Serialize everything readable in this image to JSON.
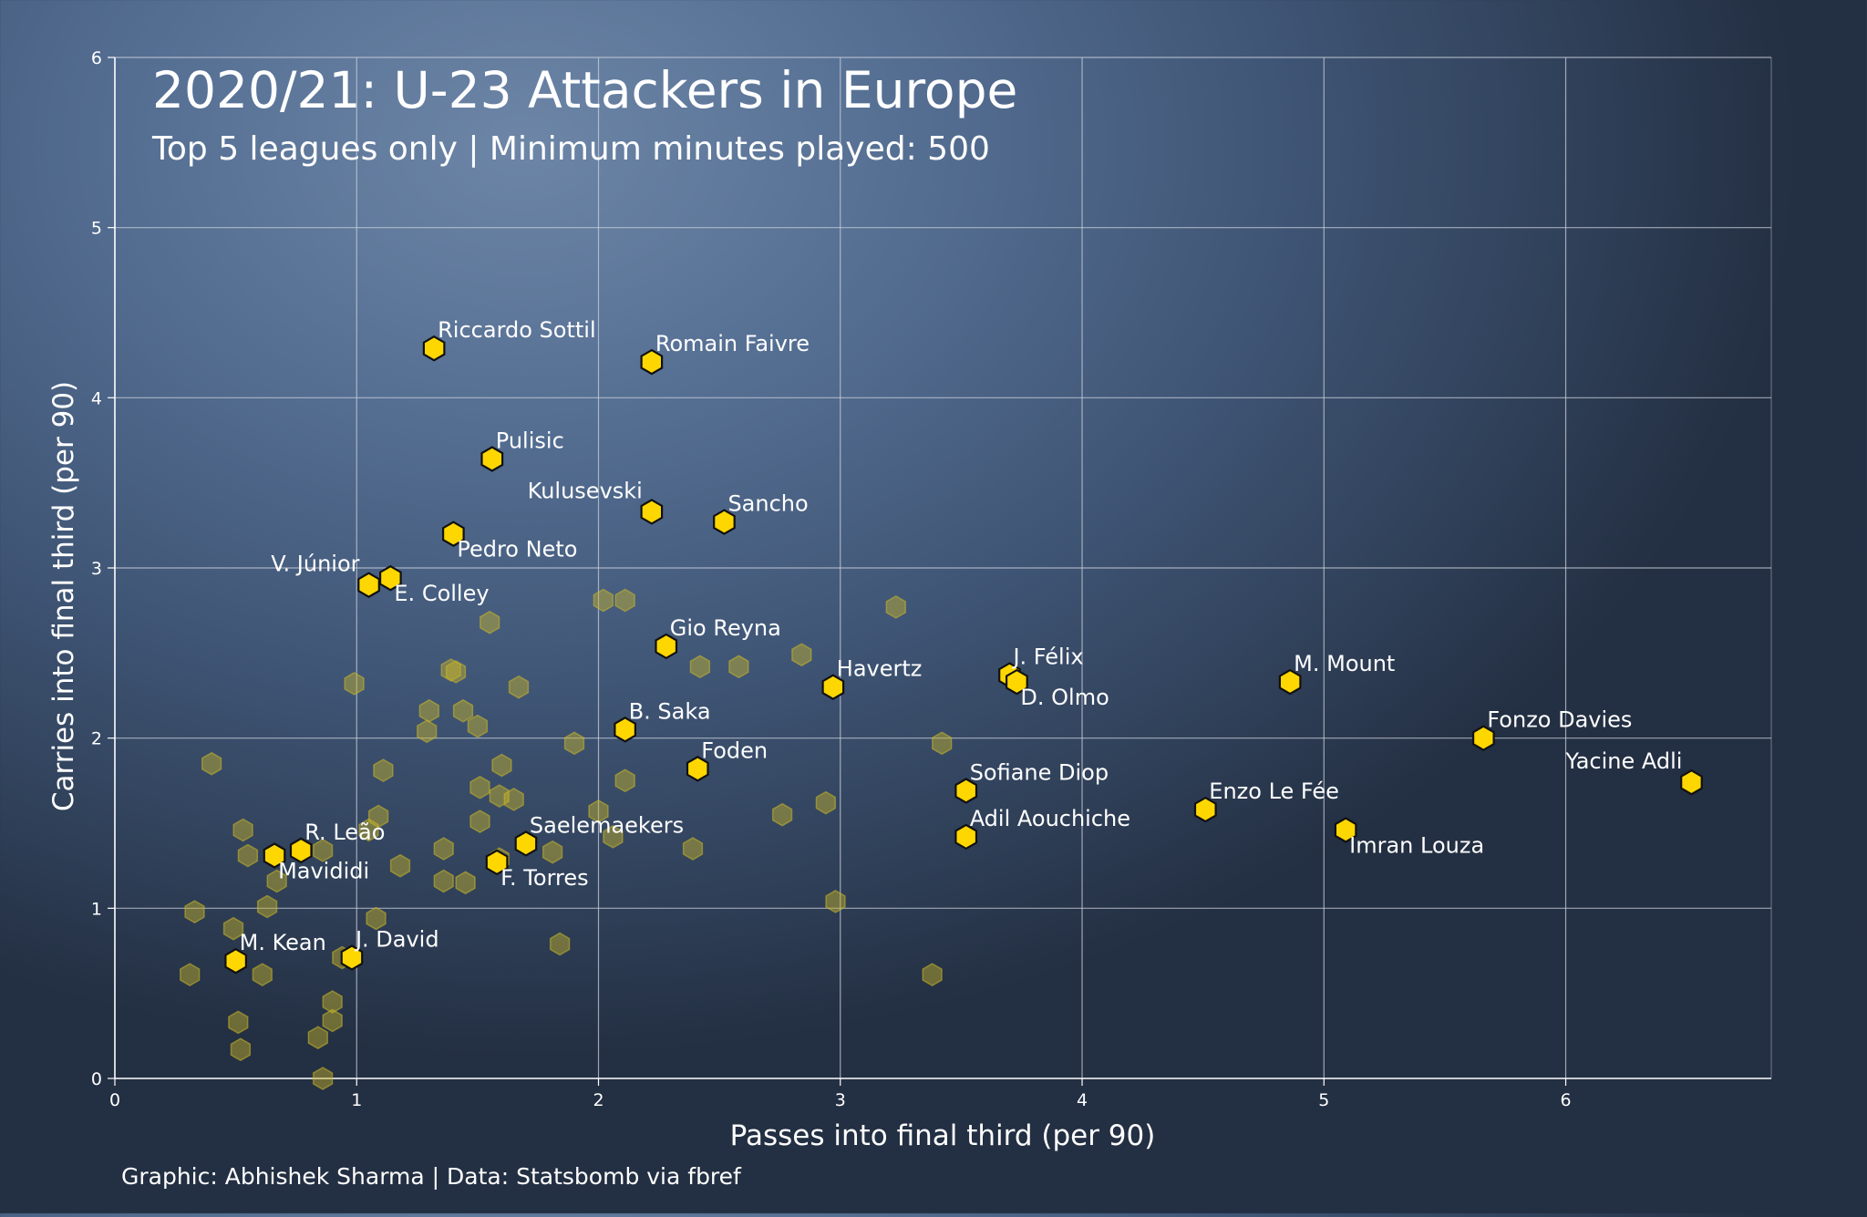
{
  "chart_data": {
    "type": "scatter",
    "title": "2020/21: U-23 Attackers in Europe",
    "subtitle": "Top 5 leagues only | Minimum minutes played: 500",
    "xlabel": "Passes into final third (per 90)",
    "ylabel": "Carries into final third (per 90)",
    "xlim": [
      0,
      6.85
    ],
    "ylim": [
      0,
      6
    ],
    "xticks": [
      "0",
      "1",
      "2",
      "3",
      "4",
      "5",
      "6"
    ],
    "yticks": [
      "0",
      "1",
      "2",
      "3",
      "4",
      "5",
      "6"
    ],
    "grid": true,
    "caption": "Graphic: Abhishek Sharma | Data: Statsbomb via fbref",
    "colors": {
      "highlight": "#ffd700",
      "background_points": "#c9b628",
      "grid": "#c8ced8",
      "text": "#ffffff"
    },
    "labeled_points": [
      {
        "label": "Riccardo Sottil",
        "x": 1.32,
        "y": 4.29,
        "anchor": "start"
      },
      {
        "label": "Romain Faivre",
        "x": 2.22,
        "y": 4.21,
        "anchor": "start"
      },
      {
        "label": "Pulisic",
        "x": 1.56,
        "y": 3.64,
        "anchor": "start"
      },
      {
        "label": "Kulusevski",
        "x": 2.22,
        "y": 3.33,
        "anchor": "end"
      },
      {
        "label": "Sancho",
        "x": 2.52,
        "y": 3.27,
        "anchor": "start"
      },
      {
        "label": "Pedro Neto",
        "x": 1.4,
        "y": 3.2,
        "anchor": "start-below"
      },
      {
        "label": "V. Júnior",
        "x": 1.05,
        "y": 2.9,
        "anchor": "end"
      },
      {
        "label": "E. Colley",
        "x": 1.14,
        "y": 2.94,
        "anchor": "start-below"
      },
      {
        "label": "Gio Reyna",
        "x": 2.28,
        "y": 2.54,
        "anchor": "start"
      },
      {
        "label": "Havertz",
        "x": 2.97,
        "y": 2.3,
        "anchor": "start"
      },
      {
        "label": "J. Félix",
        "x": 3.7,
        "y": 2.37,
        "anchor": "start"
      },
      {
        "label": "D. Olmo",
        "x": 3.73,
        "y": 2.33,
        "anchor": "start-below"
      },
      {
        "label": "M. Mount",
        "x": 4.86,
        "y": 2.33,
        "anchor": "start"
      },
      {
        "label": "B. Saka",
        "x": 2.11,
        "y": 2.05,
        "anchor": "start"
      },
      {
        "label": "Fonzo Davies",
        "x": 5.66,
        "y": 2.0,
        "anchor": "start"
      },
      {
        "label": "Foden",
        "x": 2.41,
        "y": 1.82,
        "anchor": "start"
      },
      {
        "label": "Yacine Adli",
        "x": 6.52,
        "y": 1.74,
        "anchor": "end"
      },
      {
        "label": "Sofiane Diop",
        "x": 3.52,
        "y": 1.69,
        "anchor": "start"
      },
      {
        "label": "Enzo Le Fée",
        "x": 4.51,
        "y": 1.58,
        "anchor": "start"
      },
      {
        "label": "Imran Louza",
        "x": 5.09,
        "y": 1.46,
        "anchor": "start-below"
      },
      {
        "label": "Adil Aouchiche",
        "x": 3.52,
        "y": 1.42,
        "anchor": "start"
      },
      {
        "label": "Saelemaekers",
        "x": 1.7,
        "y": 1.38,
        "anchor": "start"
      },
      {
        "label": "R. Leão",
        "x": 0.77,
        "y": 1.34,
        "anchor": "start"
      },
      {
        "label": "Mavididi",
        "x": 0.66,
        "y": 1.31,
        "anchor": "start-below"
      },
      {
        "label": "F. Torres",
        "x": 1.58,
        "y": 1.27,
        "anchor": "start-below"
      },
      {
        "label": "M. Kean",
        "x": 0.5,
        "y": 0.69,
        "anchor": "start"
      },
      {
        "label": "J. David",
        "x": 0.98,
        "y": 0.71,
        "anchor": "start"
      }
    ],
    "other_points": [
      [
        0.4,
        1.85
      ],
      [
        0.53,
        1.46
      ],
      [
        0.55,
        1.31
      ],
      [
        0.67,
        1.16
      ],
      [
        0.63,
        1.01
      ],
      [
        0.86,
        1.34
      ],
      [
        0.33,
        0.98
      ],
      [
        0.31,
        0.61
      ],
      [
        0.49,
        0.88
      ],
      [
        0.51,
        0.33
      ],
      [
        0.52,
        0.17
      ],
      [
        0.61,
        0.61
      ],
      [
        0.84,
        0.24
      ],
      [
        0.9,
        0.34
      ],
      [
        0.9,
        0.45
      ],
      [
        0.86,
        0.0
      ],
      [
        0.94,
        0.71
      ],
      [
        1.08,
        0.94
      ],
      [
        1.05,
        1.46
      ],
      [
        1.09,
        1.54
      ],
      [
        1.11,
        1.81
      ],
      [
        1.18,
        1.25
      ],
      [
        0.99,
        2.32
      ],
      [
        1.3,
        2.16
      ],
      [
        1.29,
        2.04
      ],
      [
        1.41,
        2.39
      ],
      [
        1.39,
        2.4
      ],
      [
        1.44,
        2.16
      ],
      [
        1.5,
        2.07
      ],
      [
        1.55,
        2.68
      ],
      [
        1.67,
        2.3
      ],
      [
        1.6,
        1.84
      ],
      [
        1.51,
        1.71
      ],
      [
        1.59,
        1.66
      ],
      [
        1.65,
        1.64
      ],
      [
        1.51,
        1.51
      ],
      [
        1.36,
        1.35
      ],
      [
        1.36,
        1.16
      ],
      [
        1.45,
        1.15
      ],
      [
        1.59,
        1.29
      ],
      [
        1.81,
        1.33
      ],
      [
        1.9,
        1.97
      ],
      [
        1.84,
        0.79
      ],
      [
        2.02,
        2.81
      ],
      [
        2.11,
        2.81
      ],
      [
        2.0,
        1.57
      ],
      [
        2.06,
        1.42
      ],
      [
        2.11,
        1.75
      ],
      [
        2.39,
        1.35
      ],
      [
        2.42,
        2.42
      ],
      [
        2.58,
        2.42
      ],
      [
        2.76,
        1.55
      ],
      [
        2.84,
        2.49
      ],
      [
        2.94,
        1.62
      ],
      [
        2.98,
        1.04
      ],
      [
        3.23,
        2.77
      ],
      [
        3.42,
        1.97
      ],
      [
        3.38,
        0.61
      ]
    ]
  }
}
